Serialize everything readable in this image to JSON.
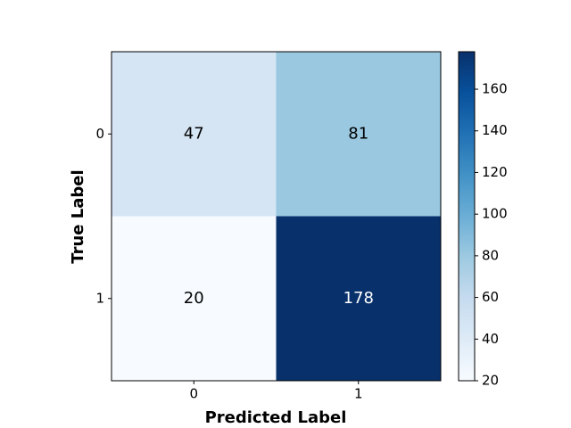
{
  "chart_data": {
    "type": "heatmap",
    "x_label": "Predicted Label",
    "y_label": "True Label",
    "x_categories": [
      "0",
      "1"
    ],
    "y_categories": [
      "0",
      "1"
    ],
    "values": [
      [
        47,
        81
      ],
      [
        20,
        178
      ]
    ],
    "colormap": [
      "#f7fbff",
      "#deebf7",
      "#c6dbef",
      "#9ecae1",
      "#6baed6",
      "#4292c6",
      "#2171b5",
      "#08519c",
      "#08306b"
    ],
    "clim": [
      20,
      178
    ],
    "cticks": [
      20,
      40,
      60,
      80,
      100,
      120,
      140,
      160
    ]
  }
}
